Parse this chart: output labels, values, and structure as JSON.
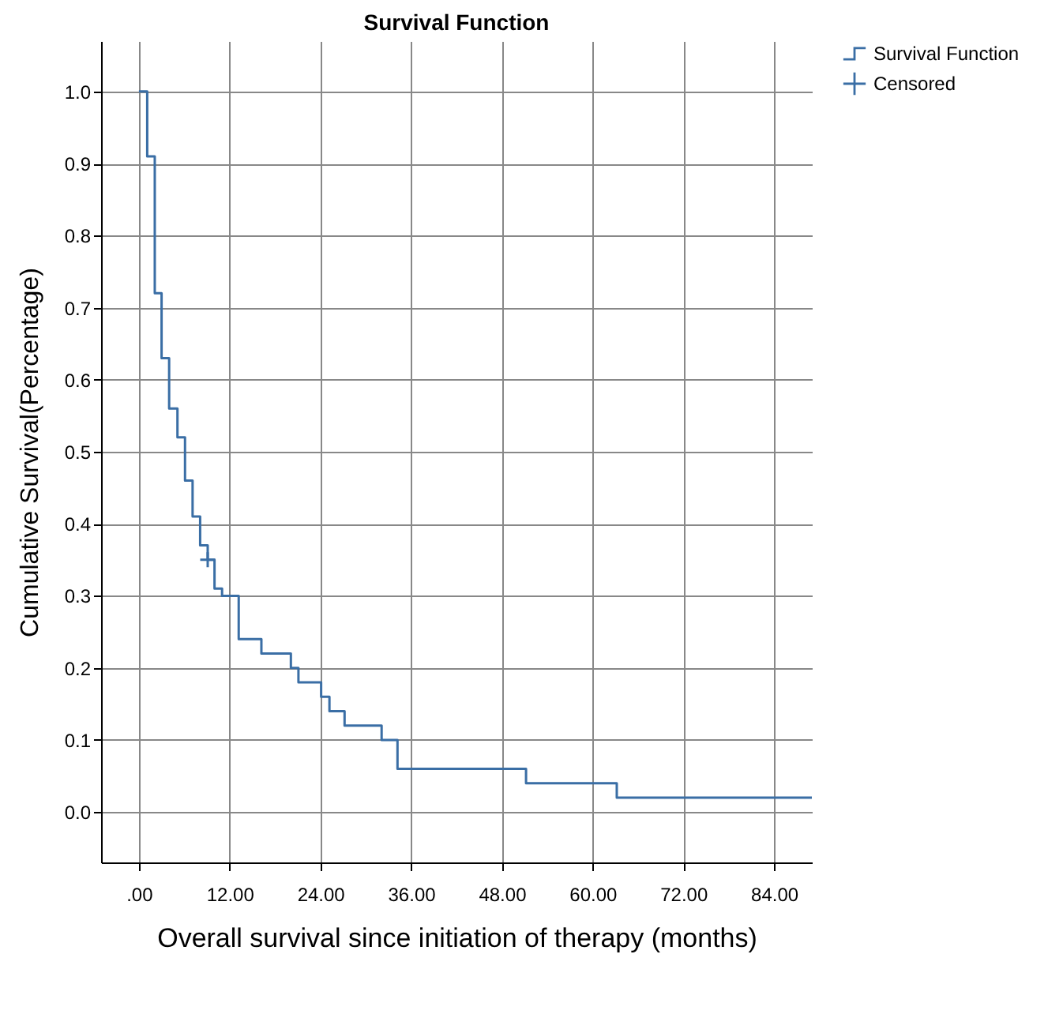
{
  "chart_data": {
    "type": "step",
    "title": "Survival Function",
    "xlabel": "Overall survival since initiation of therapy (months)",
    "ylabel": "Cumulative Survival(Percentage)",
    "xlim": [
      -5,
      89
    ],
    "ylim": [
      -0.07,
      1.07
    ],
    "xticks": [
      {
        "value": 0,
        "label": ".00"
      },
      {
        "value": 12,
        "label": "12.00"
      },
      {
        "value": 24,
        "label": "24.00"
      },
      {
        "value": 36,
        "label": "36.00"
      },
      {
        "value": 48,
        "label": "48.00"
      },
      {
        "value": 60,
        "label": "60.00"
      },
      {
        "value": 72,
        "label": "72.00"
      },
      {
        "value": 84,
        "label": "84.00"
      }
    ],
    "yticks": [
      {
        "value": 0,
        "label": "0.0"
      },
      {
        "value": 0.1,
        "label": "0.1"
      },
      {
        "value": 0.2,
        "label": "0.2"
      },
      {
        "value": 0.3,
        "label": "0.3"
      },
      {
        "value": 0.4,
        "label": "0.4"
      },
      {
        "value": 0.5,
        "label": "0.5"
      },
      {
        "value": 0.6,
        "label": "0.6"
      },
      {
        "value": 0.7,
        "label": "0.7"
      },
      {
        "value": 0.8,
        "label": "0.8"
      },
      {
        "value": 0.9,
        "label": "0.9"
      },
      {
        "value": 1,
        "label": "1.0"
      }
    ],
    "grid": true,
    "legend": "top right",
    "series": [
      {
        "name": "Survival Function",
        "color": "#3a6ea5",
        "x": [
          0,
          1.1,
          2.1,
          3.0,
          4.0,
          5.1,
          6.1,
          7.1,
          8.1,
          9.1,
          10.0,
          11.0,
          13.2,
          16.2,
          20.1,
          21.1,
          24.1,
          25.2,
          27.2,
          32.1,
          34.2,
          51.2,
          63.2,
          89
        ],
        "values": [
          1,
          0.91,
          0.72,
          0.63,
          0.56,
          0.52,
          0.46,
          0.41,
          0.37,
          0.35,
          0.31,
          0.3,
          0.24,
          0.22,
          0.2,
          0.18,
          0.16,
          0.14,
          0.12,
          0.1,
          0.06,
          0.04,
          0.02,
          0.02
        ]
      },
      {
        "name": "Censored",
        "type": "scatter",
        "marker": "cross",
        "color": "#3a6ea5",
        "x": [
          9.1
        ],
        "values": [
          0.35
        ]
      }
    ]
  }
}
